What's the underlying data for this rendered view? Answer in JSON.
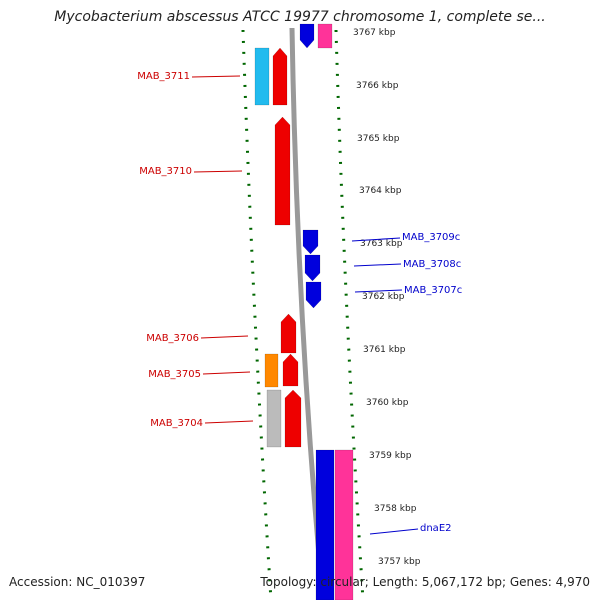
{
  "title": "Mycobacterium abscessus ATCC 19977 chromosome 1, complete se...",
  "accession_text": "Accession: NC_010397",
  "stats_text": "Topology: circular; Length: 5,067,172 bp; Genes: 4,970",
  "colors": {
    "forward_cds": "#ee0000",
    "reverse_cds": "#0000dd",
    "other_cds": "#22bbee",
    "orange_feature": "#ff8800",
    "grey_feature": "#bbbbbb",
    "pink_feature": "#ff3399",
    "backbone": "#999999",
    "dots": "#006600",
    "label_forward": "#cc0000",
    "label_reverse": "#0000cc"
  },
  "scale_ticks": [
    "3767 kbp",
    "3766 kbp",
    "3765 kbp",
    "3764 kbp",
    "3763 kbp",
    "3762 kbp",
    "3761 kbp",
    "3760 kbp",
    "3759 kbp",
    "3758 kbp",
    "3757 kbp"
  ],
  "gene_labels": [
    {
      "id": "MAB_3711",
      "text": "MAB_3711",
      "strand": "forward"
    },
    {
      "id": "MAB_3710",
      "text": "MAB_3710",
      "strand": "forward"
    },
    {
      "id": "MAB_3709c",
      "text": "MAB_3709c",
      "strand": "reverse"
    },
    {
      "id": "MAB_3708c",
      "text": "MAB_3708c",
      "strand": "reverse"
    },
    {
      "id": "MAB_3707c",
      "text": "MAB_3707c",
      "strand": "reverse"
    },
    {
      "id": "MAB_3706",
      "text": "MAB_3706",
      "strand": "forward"
    },
    {
      "id": "MAB_3705",
      "text": "MAB_3705",
      "strand": "forward"
    },
    {
      "id": "MAB_3704",
      "text": "MAB_3704",
      "strand": "forward"
    },
    {
      "id": "dnaE2",
      "text": "dnaE2",
      "strand": "reverse"
    }
  ]
}
